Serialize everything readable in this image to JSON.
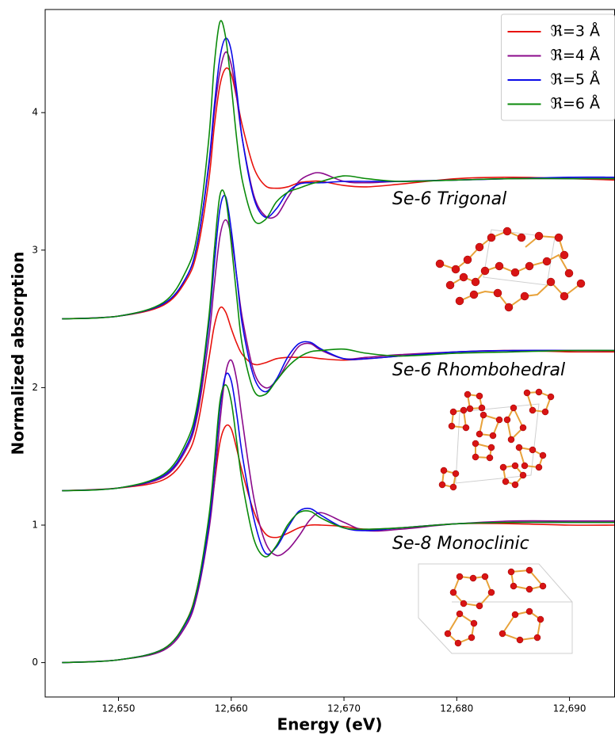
{
  "chart_data": {
    "type": "line",
    "x_label": "Energy (eV)",
    "y_label": "Normalized absorption",
    "xlim": [
      12643.5,
      12694
    ],
    "ylim": [
      -0.25,
      4.75
    ],
    "xticks": [
      {
        "value": 12650,
        "label": "12,650"
      },
      {
        "value": 12660,
        "label": "12,660"
      },
      {
        "value": 12670,
        "label": "12,670"
      },
      {
        "value": 12680,
        "label": "12,680"
      },
      {
        "value": 12690,
        "label": "12,690"
      }
    ],
    "yticks": [
      0,
      1,
      2,
      3,
      4
    ],
    "legend_position": "upper right",
    "annotations": [
      "Se-6 Trigonal",
      "Se-6 Rhombohedral",
      "Se-8 Monoclinic"
    ],
    "x": [
      12645,
      12650,
      12654,
      12656,
      12657,
      12658,
      12658.5,
      12659,
      12659.5,
      12660,
      12660.5,
      12661,
      12662,
      12663,
      12664,
      12665,
      12666,
      12667,
      12668,
      12670,
      12672,
      12675,
      12680,
      12685,
      12690,
      12694
    ],
    "series": [
      {
        "name": "ℜ=3 Å",
        "color": "#e8120c",
        "values": [
          2.5,
          2.52,
          2.6,
          2.78,
          3.0,
          3.5,
          3.9,
          4.2,
          4.32,
          4.28,
          4.1,
          3.9,
          3.6,
          3.47,
          3.45,
          3.46,
          3.49,
          3.5,
          3.5,
          3.47,
          3.46,
          3.48,
          3.52,
          3.53,
          3.52,
          3.51
        ]
      },
      {
        "name": "ℜ=4 Å",
        "color": "#8b0a8b",
        "values": [
          2.5,
          2.52,
          2.61,
          2.8,
          3.05,
          3.6,
          4.0,
          4.3,
          4.44,
          4.35,
          4.1,
          3.8,
          3.4,
          3.25,
          3.25,
          3.38,
          3.5,
          3.55,
          3.56,
          3.5,
          3.49,
          3.5,
          3.51,
          3.52,
          3.52,
          3.52
        ]
      },
      {
        "name": "ℜ=5 Å",
        "color": "#0a0ae8",
        "values": [
          2.5,
          2.52,
          2.61,
          2.8,
          3.05,
          3.62,
          4.05,
          4.4,
          4.54,
          4.45,
          4.15,
          3.8,
          3.38,
          3.24,
          3.3,
          3.42,
          3.48,
          3.49,
          3.49,
          3.5,
          3.5,
          3.5,
          3.51,
          3.52,
          3.53,
          3.53
        ]
      },
      {
        "name": "ℜ=6 Å",
        "color": "#0a8a0a",
        "values": [
          2.5,
          2.52,
          2.62,
          2.85,
          3.12,
          3.8,
          4.35,
          4.66,
          4.55,
          4.2,
          3.8,
          3.5,
          3.22,
          3.22,
          3.35,
          3.42,
          3.45,
          3.48,
          3.5,
          3.54,
          3.52,
          3.5,
          3.51,
          3.52,
          3.52,
          3.52
        ]
      },
      {
        "color": "#e8120c",
        "values": [
          1.25,
          1.27,
          1.33,
          1.5,
          1.72,
          2.2,
          2.45,
          2.58,
          2.55,
          2.43,
          2.32,
          2.24,
          2.17,
          2.18,
          2.21,
          2.22,
          2.22,
          2.22,
          2.21,
          2.2,
          2.21,
          2.23,
          2.26,
          2.27,
          2.26,
          2.26
        ]
      },
      {
        "color": "#8b0a8b",
        "values": [
          1.25,
          1.27,
          1.35,
          1.55,
          1.8,
          2.35,
          2.75,
          3.1,
          3.22,
          3.1,
          2.8,
          2.5,
          2.12,
          2.0,
          2.05,
          2.18,
          2.3,
          2.32,
          2.27,
          2.21,
          2.22,
          2.24,
          2.26,
          2.27,
          2.27,
          2.27
        ]
      },
      {
        "color": "#0a0ae8",
        "values": [
          1.25,
          1.27,
          1.36,
          1.57,
          1.84,
          2.45,
          2.9,
          3.3,
          3.39,
          3.15,
          2.8,
          2.45,
          2.08,
          1.97,
          2.06,
          2.22,
          2.32,
          2.33,
          2.28,
          2.21,
          2.21,
          2.23,
          2.26,
          2.27,
          2.27,
          2.27
        ]
      },
      {
        "color": "#0a8a0a",
        "values": [
          1.25,
          1.27,
          1.37,
          1.6,
          1.88,
          2.5,
          3.0,
          3.4,
          3.38,
          3.05,
          2.65,
          2.3,
          1.98,
          1.95,
          2.05,
          2.15,
          2.22,
          2.26,
          2.27,
          2.28,
          2.25,
          2.23,
          2.25,
          2.26,
          2.27,
          2.27
        ]
      },
      {
        "color": "#e8120c",
        "values": [
          0,
          0.02,
          0.1,
          0.3,
          0.55,
          1.0,
          1.3,
          1.6,
          1.72,
          1.7,
          1.55,
          1.38,
          1.1,
          0.94,
          0.91,
          0.94,
          0.98,
          1.0,
          1.0,
          0.99,
          0.97,
          0.98,
          1.01,
          1.01,
          1.0,
          1.0
        ]
      },
      {
        "color": "#8b0a8b",
        "values": [
          0,
          0.02,
          0.09,
          0.27,
          0.5,
          0.95,
          1.3,
          1.75,
          2.1,
          2.2,
          2.05,
          1.75,
          1.2,
          0.88,
          0.78,
          0.82,
          0.92,
          1.04,
          1.09,
          1.02,
          0.96,
          0.97,
          1.01,
          1.03,
          1.03,
          1.03
        ]
      },
      {
        "color": "#0a0ae8",
        "values": [
          0,
          0.02,
          0.1,
          0.29,
          0.53,
          1.0,
          1.4,
          1.85,
          2.09,
          2.05,
          1.8,
          1.5,
          1.05,
          0.8,
          0.84,
          0.98,
          1.1,
          1.12,
          1.07,
          0.98,
          0.96,
          0.98,
          1.01,
          1.02,
          1.02,
          1.02
        ]
      },
      {
        "color": "#0a8a0a",
        "values": [
          0,
          0.02,
          0.1,
          0.3,
          0.55,
          1.05,
          1.45,
          1.9,
          2.02,
          1.9,
          1.6,
          1.3,
          0.9,
          0.77,
          0.85,
          1.0,
          1.09,
          1.1,
          1.05,
          0.98,
          0.97,
          0.98,
          1.01,
          1.02,
          1.02,
          1.02
        ]
      }
    ]
  }
}
